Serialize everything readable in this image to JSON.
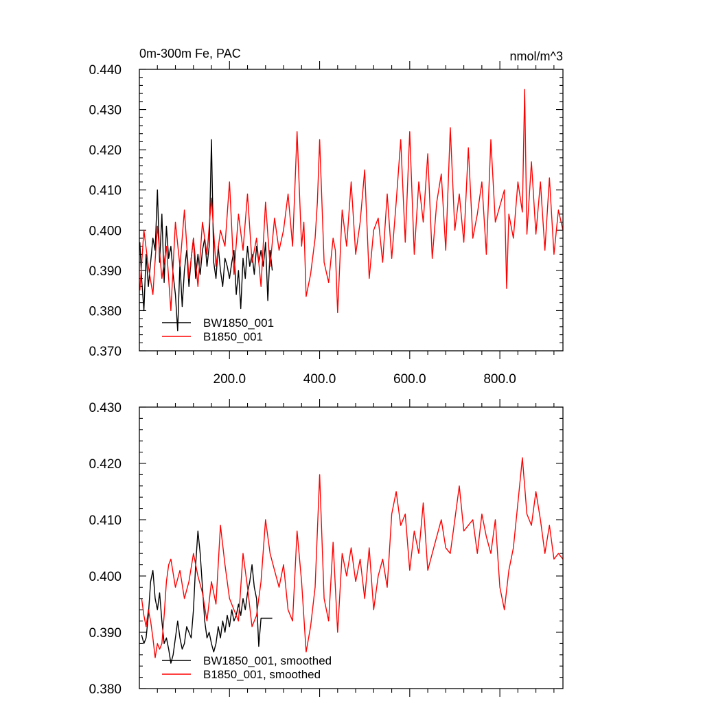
{
  "chart_data": [
    {
      "type": "line",
      "title": "0m-300m Fe, PAC",
      "units": "nmol/m^3",
      "xlim": [
        0,
        940
      ],
      "ylim": [
        0.37,
        0.44
      ],
      "x_ticks": [
        200,
        400,
        600,
        800
      ],
      "x_tick_labels": [
        "200.0",
        "400.0",
        "600.0",
        "800.0"
      ],
      "y_ticks": [
        0.37,
        0.38,
        0.39,
        0.4,
        0.41,
        0.42,
        0.43,
        0.44
      ],
      "y_tick_labels": [
        "0.370",
        "0.380",
        "0.390",
        "0.400",
        "0.410",
        "0.420",
        "0.430",
        "0.440"
      ],
      "legend_position": "bottom-left",
      "series": [
        {
          "name": "BW1850_001",
          "color": "#000000",
          "x": [
            1,
            5,
            10,
            15,
            20,
            25,
            30,
            35,
            40,
            45,
            50,
            55,
            60,
            65,
            70,
            75,
            80,
            85,
            90,
            95,
            100,
            105,
            110,
            115,
            120,
            125,
            130,
            135,
            140,
            145,
            150,
            155,
            160,
            165,
            170,
            175,
            180,
            185,
            190,
            195,
            200,
            205,
            210,
            215,
            220,
            225,
            230,
            235,
            240,
            245,
            250,
            255,
            260,
            265,
            270,
            275,
            280,
            285,
            290,
            295
          ],
          "values": [
            0.397,
            0.388,
            0.38,
            0.394,
            0.386,
            0.392,
            0.398,
            0.395,
            0.41,
            0.392,
            0.404,
            0.387,
            0.401,
            0.393,
            0.396,
            0.389,
            0.384,
            0.375,
            0.392,
            0.381,
            0.39,
            0.395,
            0.386,
            0.393,
            0.398,
            0.388,
            0.394,
            0.389,
            0.395,
            0.398,
            0.391,
            0.396,
            0.4225,
            0.392,
            0.388,
            0.396,
            0.39,
            0.386,
            0.393,
            0.391,
            0.388,
            0.392,
            0.395,
            0.384,
            0.39,
            0.3805,
            0.393,
            0.388,
            0.396,
            0.391,
            0.394,
            0.389,
            0.396,
            0.392,
            0.395,
            0.391,
            0.397,
            0.3825,
            0.395,
            0.39
          ]
        },
        {
          "name": "B1850_001",
          "color": "#ff0000",
          "x": [
            1,
            10,
            20,
            30,
            40,
            50,
            60,
            70,
            80,
            90,
            100,
            110,
            120,
            130,
            140,
            150,
            160,
            170,
            180,
            190,
            200,
            210,
            220,
            230,
            240,
            250,
            260,
            270,
            280,
            290,
            300,
            310,
            320,
            330,
            340,
            350,
            360,
            365,
            370,
            380,
            390,
            395,
            400,
            410,
            420,
            430,
            435,
            440,
            450,
            460,
            470,
            480,
            490,
            500,
            510,
            520,
            530,
            540,
            550,
            560,
            570,
            580,
            590,
            600,
            610,
            620,
            630,
            640,
            650,
            660,
            670,
            680,
            690,
            700,
            710,
            720,
            730,
            740,
            750,
            760,
            770,
            780,
            790,
            800,
            810,
            815,
            820,
            830,
            840,
            850,
            855,
            860,
            870,
            880,
            890,
            900,
            910,
            920,
            930,
            940
          ],
          "values": [
            0.385,
            0.4,
            0.391,
            0.384,
            0.401,
            0.388,
            0.396,
            0.38,
            0.402,
            0.391,
            0.405,
            0.388,
            0.398,
            0.386,
            0.402,
            0.394,
            0.408,
            0.391,
            0.4,
            0.396,
            0.412,
            0.389,
            0.404,
            0.395,
            0.409,
            0.392,
            0.398,
            0.386,
            0.407,
            0.391,
            0.403,
            0.395,
            0.4,
            0.409,
            0.396,
            0.4245,
            0.396,
            0.402,
            0.3835,
            0.389,
            0.398,
            0.407,
            0.4225,
            0.392,
            0.387,
            0.398,
            0.395,
            0.3795,
            0.405,
            0.396,
            0.412,
            0.394,
            0.402,
            0.415,
            0.388,
            0.4,
            0.403,
            0.392,
            0.409,
            0.393,
            0.407,
            0.4225,
            0.397,
            0.4245,
            0.394,
            0.412,
            0.402,
            0.419,
            0.393,
            0.407,
            0.414,
            0.395,
            0.4255,
            0.4,
            0.409,
            0.397,
            0.4205,
            0.398,
            0.404,
            0.412,
            0.394,
            0.4225,
            0.402,
            0.406,
            0.41,
            0.3855,
            0.404,
            0.398,
            0.412,
            0.4045,
            0.435,
            0.399,
            0.417,
            0.399,
            0.412,
            0.395,
            0.413,
            0.394,
            0.405,
            0.4
          ]
        }
      ]
    },
    {
      "type": "line",
      "xlim": [
        0,
        940
      ],
      "ylim": [
        0.38,
        0.43
      ],
      "x_ticks": [
        200,
        400,
        600,
        800
      ],
      "y_ticks": [
        0.38,
        0.39,
        0.4,
        0.41,
        0.42,
        0.43
      ],
      "y_tick_labels": [
        "0.380",
        "0.390",
        "0.400",
        "0.410",
        "0.420",
        "0.430"
      ],
      "legend_position": "bottom-left",
      "series": [
        {
          "name": "BW1850_001, smoothed",
          "color": "#000000",
          "x": [
            5,
            10,
            15,
            20,
            25,
            30,
            35,
            40,
            45,
            50,
            55,
            60,
            65,
            70,
            75,
            80,
            85,
            90,
            95,
            100,
            105,
            110,
            115,
            120,
            125,
            130,
            135,
            140,
            145,
            150,
            155,
            160,
            165,
            170,
            175,
            180,
            185,
            190,
            195,
            200,
            205,
            210,
            215,
            220,
            225,
            230,
            235,
            240,
            245,
            250,
            255,
            260,
            265,
            270,
            275,
            280,
            285,
            290,
            295
          ],
          "values": [
            0.3895,
            0.388,
            0.389,
            0.393,
            0.399,
            0.401,
            0.396,
            0.394,
            0.397,
            0.392,
            0.388,
            0.389,
            0.387,
            0.3845,
            0.386,
            0.389,
            0.392,
            0.389,
            0.387,
            0.388,
            0.391,
            0.39,
            0.389,
            0.394,
            0.402,
            0.408,
            0.404,
            0.398,
            0.392,
            0.389,
            0.39,
            0.388,
            0.3865,
            0.388,
            0.391,
            0.389,
            0.392,
            0.39,
            0.393,
            0.391,
            0.394,
            0.392,
            0.393,
            0.395,
            0.393,
            0.396,
            0.394,
            0.397,
            0.399,
            0.402,
            0.398,
            0.396,
            0.3875,
            0.3925,
            0.3925,
            0.3925,
            0.3925,
            0.3925,
            0.3925
          ]
        },
        {
          "name": "B1850_001, smoothed",
          "color": "#ff0000",
          "x": [
            5,
            10,
            15,
            20,
            25,
            30,
            35,
            40,
            45,
            50,
            55,
            60,
            65,
            70,
            80,
            90,
            100,
            110,
            120,
            130,
            140,
            150,
            160,
            170,
            180,
            190,
            200,
            210,
            220,
            230,
            240,
            250,
            260,
            270,
            280,
            290,
            300,
            310,
            320,
            330,
            340,
            350,
            360,
            370,
            380,
            390,
            400,
            410,
            420,
            430,
            440,
            450,
            460,
            470,
            480,
            490,
            500,
            510,
            520,
            530,
            540,
            550,
            560,
            570,
            580,
            590,
            600,
            610,
            620,
            630,
            640,
            650,
            660,
            670,
            680,
            690,
            700,
            710,
            720,
            730,
            740,
            750,
            760,
            770,
            780,
            790,
            800,
            810,
            820,
            830,
            840,
            850,
            860,
            870,
            880,
            890,
            900,
            910,
            920,
            930,
            940
          ],
          "values": [
            0.396,
            0.393,
            0.391,
            0.394,
            0.392,
            0.389,
            0.3855,
            0.388,
            0.387,
            0.388,
            0.393,
            0.399,
            0.402,
            0.403,
            0.398,
            0.401,
            0.396,
            0.399,
            0.404,
            0.4,
            0.397,
            0.392,
            0.399,
            0.395,
            0.409,
            0.402,
            0.396,
            0.394,
            0.392,
            0.404,
            0.398,
            0.391,
            0.393,
            0.399,
            0.41,
            0.404,
            0.401,
            0.398,
            0.402,
            0.394,
            0.392,
            0.408,
            0.399,
            0.3865,
            0.391,
            0.398,
            0.418,
            0.396,
            0.392,
            0.406,
            0.39,
            0.404,
            0.4,
            0.405,
            0.399,
            0.403,
            0.396,
            0.405,
            0.394,
            0.4,
            0.403,
            0.398,
            0.411,
            0.415,
            0.409,
            0.411,
            0.401,
            0.408,
            0.404,
            0.413,
            0.401,
            0.404,
            0.407,
            0.41,
            0.405,
            0.404,
            0.41,
            0.416,
            0.408,
            0.409,
            0.41,
            0.404,
            0.411,
            0.407,
            0.404,
            0.41,
            0.398,
            0.394,
            0.401,
            0.405,
            0.413,
            0.421,
            0.411,
            0.409,
            0.415,
            0.41,
            0.404,
            0.409,
            0.403,
            0.404,
            0.403
          ]
        }
      ]
    }
  ]
}
